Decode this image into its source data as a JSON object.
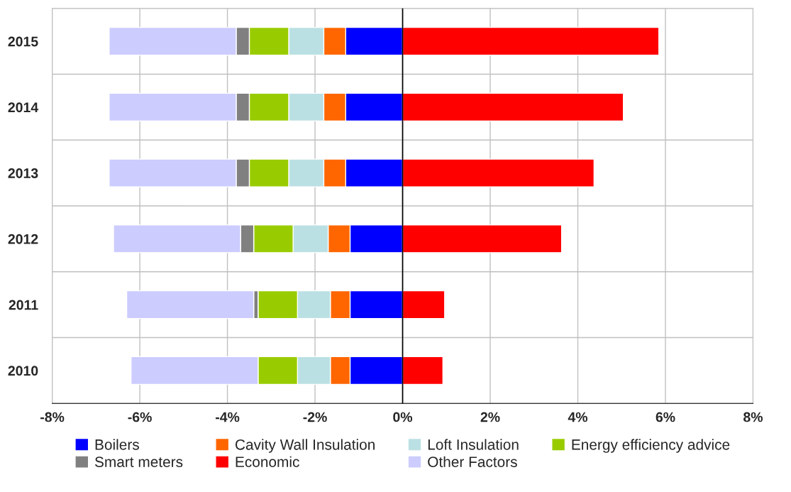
{
  "chart_data": {
    "type": "bar",
    "orientation": "horizontal",
    "stacked": true,
    "categories": [
      "2015",
      "2014",
      "2013",
      "2012",
      "2011",
      "2010"
    ],
    "series": [
      {
        "name": "Boilers",
        "color": "#0000ff",
        "values": [
          -1.3,
          -1.3,
          -1.3,
          -1.2,
          -1.2,
          -1.2
        ]
      },
      {
        "name": "Cavity Wall Insulation",
        "color": "#ff6600",
        "values": [
          -0.5,
          -0.5,
          -0.5,
          -0.5,
          -0.45,
          -0.45
        ]
      },
      {
        "name": "Loft Insulation",
        "color": "#bbe0e3",
        "values": [
          -0.8,
          -0.8,
          -0.8,
          -0.8,
          -0.75,
          -0.75
        ]
      },
      {
        "name": "Energy efficiency advice",
        "color": "#99cc00",
        "values": [
          -0.9,
          -0.9,
          -0.9,
          -0.9,
          -0.9,
          -0.9
        ]
      },
      {
        "name": "Smart meters",
        "color": "#808080",
        "values": [
          -0.3,
          -0.3,
          -0.3,
          -0.3,
          -0.1,
          null
        ]
      },
      {
        "name": "Economic",
        "color": "#ff0000",
        "values": [
          5.85,
          5.04,
          4.37,
          3.63,
          0.96,
          0.92
        ]
      },
      {
        "name": "Other Factors",
        "color": "#ccccff",
        "values": [
          -2.9,
          -2.9,
          -2.9,
          -2.9,
          -2.9,
          -2.9
        ]
      }
    ],
    "xlim": [
      -8,
      8
    ],
    "xticks": [
      {
        "value": -8,
        "label": "-8%"
      },
      {
        "value": -6,
        "label": "-6%"
      },
      {
        "value": -4,
        "label": "-4%"
      },
      {
        "value": -2,
        "label": "-2%"
      },
      {
        "value": 0,
        "label": "0%"
      },
      {
        "value": 2,
        "label": "2%"
      },
      {
        "value": 4,
        "label": "4%"
      },
      {
        "value": 6,
        "label": "6%"
      },
      {
        "value": 8,
        "label": "8%"
      }
    ],
    "grid": true,
    "legend": "bottom"
  }
}
